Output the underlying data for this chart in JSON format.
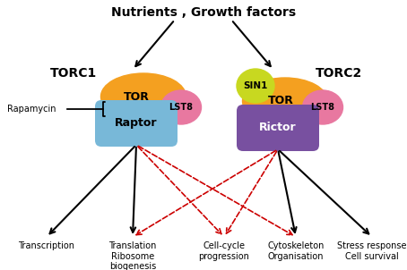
{
  "title": "Nutrients , Growth factors",
  "title_fontsize": 10,
  "title_fontweight": "bold",
  "torc1_label": "TORC1",
  "torc2_label": "TORC2",
  "rapamycin_label": "Rapamycin",
  "sin1_label": "SIN1",
  "tor1_label": "TOR",
  "tor2_label": "TOR",
  "lst8_1_label": "LST8",
  "lst8_2_label": "LST8",
  "raptor_label": "Raptor",
  "rictor_label": "Rictor",
  "outputs": [
    "Transcription",
    "Translation\nRibosome\nbiogenesis",
    "Cell-cycle\nprogression",
    "Cytoskeleton\nOrganisation",
    "Stress response\nCell survival"
  ],
  "color_tor": "#F4A020",
  "color_lst8": "#E878A0",
  "color_raptor": "#78B8D8",
  "color_rictor": "#7850A0",
  "color_sin1": "#C8D820",
  "bg_color": "#ffffff",
  "arrow_color_black": "#000000",
  "arrow_color_red": "#cc0000",
  "output_fontsize": 7,
  "torc_fontsize": 10,
  "complex_label_fontsize": 9,
  "lst8_fontsize": 7,
  "sin1_fontsize": 7.5
}
